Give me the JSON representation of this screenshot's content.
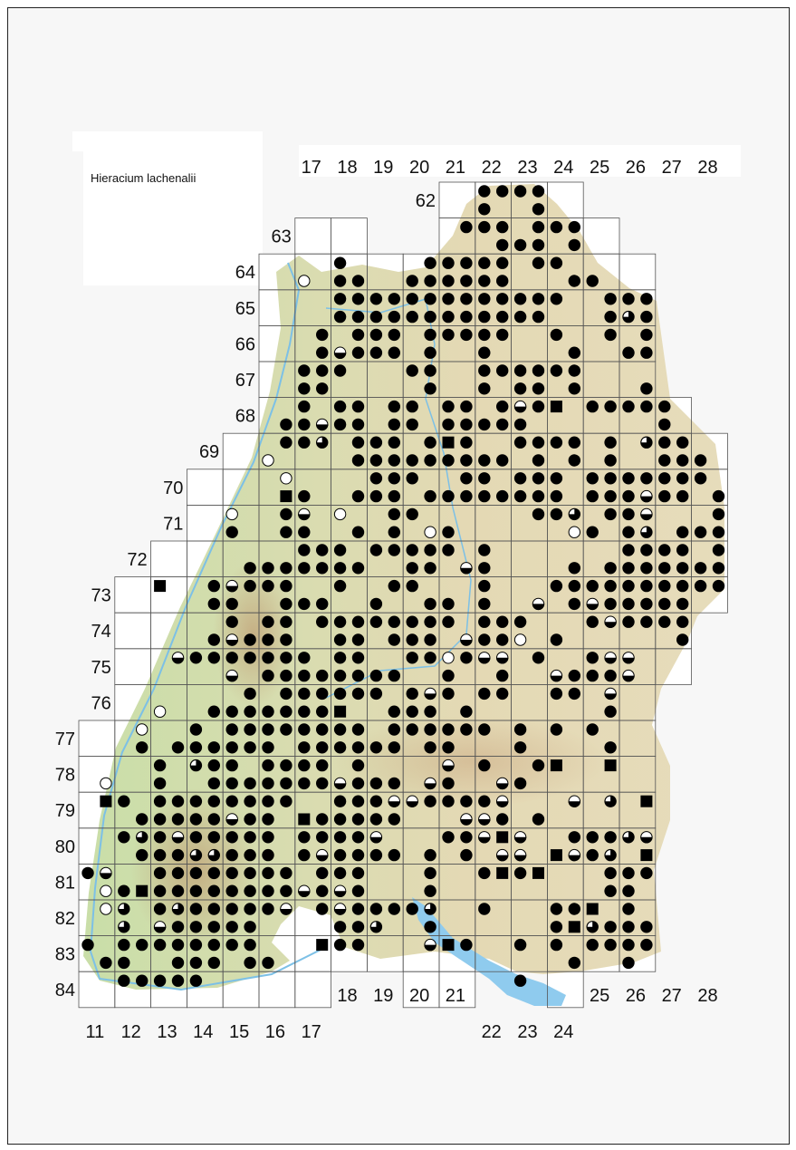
{
  "title": "Hieracium lachenalii",
  "colors": {
    "land_east": "#e4d9b4",
    "land_west": "#c9dea8",
    "water": "#8fcbee",
    "grid": "#555555",
    "dot": "#000000"
  },
  "column_labels_top": [
    "17",
    "18",
    "19",
    "20",
    "21",
    "22",
    "23",
    "24",
    "25",
    "26",
    "27",
    "28"
  ],
  "row_labels": [
    "62",
    "63",
    "64",
    "65",
    "66",
    "67",
    "68",
    "69",
    "70",
    "71",
    "72",
    "73",
    "74",
    "75",
    "76",
    "77",
    "78",
    "79",
    "80",
    "81",
    "82",
    "83",
    "84"
  ],
  "column_labels_bottom_low": [
    "11",
    "12",
    "13",
    "14",
    "15",
    "16",
    "17",
    "22",
    "23",
    "24"
  ],
  "column_labels_bottom_high": [
    "18",
    "19",
    "20",
    "21",
    "25",
    "26",
    "27",
    "28"
  ],
  "symbols": {
    "#": "filled-circle",
    "o": "open-circle",
    "h": "half-filled-circle",
    "q": "quarter-open-circle",
    "s": "filled-square"
  },
  "dot_rows": [
    "22 23 24 25",
    "22 25",
    "21 22 23 25 26 27",
    "23 24 25 27",
    "14 19 20 21 22 23 25 26",
    "12o 14 15 18 19 20 21 22 23 27 28",
    "14 15 16 17 18 19 20 21 22 23 24 25 26 29 30 31",
    "14 15 16 17 18 19 20 21 22 23 24 25 29 30q 31",
    "13 15 16 17 19 20 21 22 23 26 29 31",
    "13 14h 15 16 17 19 22 27 30 31",
    "12 13 14 18 19 22 23 24 25 26 27",
    "12 13 19 22 24 25 27 31",
    "12 14 15 17 18 20 21 23 24h 25 26s 28 29 30 31 32",
    "11 12 13h 14 15 17 18 20 21 22 23 24 32",
    "11 12 13q 15 16 17 19 20s 21 24 25 26 27 29 31q 32 33",
    "10o 15 16 17 18 19 20 21 22 23 25 27 29 32 33 34",
    "11o 16 17 18 21 22 24 25 26 28 29 30 31 32 33 34",
    "11s 12 15 16 17 19 20 21 22 23 24 25 26 28 29 30 31h 32 33 35",
    "8o 11 12h 14o 17 18 25 26 27q 29 30 31h 35",
    "8 11 12 15 17 19o 20 27o 28 30 31q 33 34 35",
    "12 13 14 16 17 18 19 20 22 30 31 32 33 35",
    "9 10 11 12 13 14 15 18 19 21h 22 27 29 30 31 32 33 34 35",
    "4s 7 8h 9 10 11 14 17 18 22 26 27 28 29 30 31 32 33 34 35",
    "7 8 11 12 13 16 19 20 22 25h 27 28h 29 30 31 32 33",
    "8 10 11 13 14 15 16 17 18 19 20 22 23 24 28 29h 30 31 32 33",
    "7 8h 9 10 11 14 15 17 18 19 21h 22 23 24o 26 33",
    "5h 6 7 8 9 10 11 12 14 15 18 19 20o 21 22h 23h 25 28 29h 30h",
    "8h 10 11 12 13 14 15 16 17 20 23 26h 27 28 29 30h",
    "9 11 12 13 14 15 16 18 19h 20 22 23 26 27 29h",
    "4o 7 8 9 10 11 12 13 14s 17 18 19 21 29",
    "3o 6 8 9 10 11 12 13 14 15 17 18 19 20 21 22 24 26 28",
    "3 5 6 7 8 9 10 12 13 14 15 16 17 19 20 24 29",
    "4 6q 7 8 10 11 12 13 15 20h 22 25 26s 29s",
    "1o 4 7 8 9 10 11 12 13 14h 15 16 17 19h 20 23h 24",
    "1s 2 4 5 6 7 8 9 10 11 14 15 16 17h 18h 19 20 21 22 23h 27h 29q 31s",
    "3 4 5 6 7 8h 9 10 12s 13 14 15 16 17 21h 22h 23 25",
    "2 3q 4 5h 6 7 8 9 10 12 13 14 15 16h 20 21 22h 23s 24h 27 28 29 30q 31h",
    "3 4 5 6q 7q 8 9 10 12 13h 14 15 16 17 19 21 23h 24h 26s 27h 28 29q 31s",
    "0 1h 4 5 6 7 8 9 10 11 13 14 15 19 22 23s 24 25s 29 30 31",
    "1o 2 3s 4 5 6 7 8 9 10 11 12h 13 14h 15 19 29 30",
    "1o 2q 4 5q 6 7 8 9 10 11h 13 14h 15 16 17 18 19q 22 26 27 28s 30",
    "2q 4h 5 6 7 8 9 14 15 16q 19 26 27s 28q 29 30 31",
    "0 2 3 4 5 6 7 8 9 13s 14 15 19h 20s 21 24 26 28 29 30 31",
    "1 2 5 6 7 9 10 27 30",
    "2 3 4 5 6 24"
  ]
}
